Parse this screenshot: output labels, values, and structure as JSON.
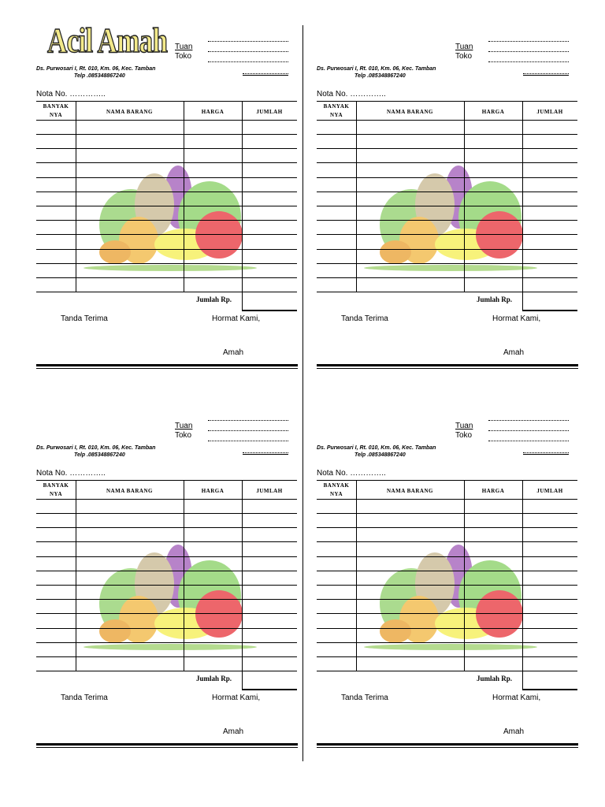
{
  "forms": [
    {
      "title": "Acil Amah",
      "tuan": "Tuan",
      "toko": "Toko",
      "address": "Ds. Purwosari I, Rt. 010, Km. 06, Kec. Tamban",
      "phone": "Telp .085348867240",
      "nota": "Nota No. …………..",
      "headers": [
        "BANYAK NYA",
        "NAMA BARANG",
        "HARGA",
        "JUMLAH"
      ],
      "total_label": "Jumlah Rp.",
      "receiver": "Tanda Terima",
      "regards": "Hormat Kami,",
      "signer": "Amah"
    },
    {
      "tuan": "Tuan",
      "toko": "Toko",
      "address": "Ds. Purwosari I, Rt. 010, Km. 06, Kec. Tamban",
      "phone": "Telp .085348867240",
      "nota": "Nota No. …………..",
      "headers": [
        "BANYAK NYA",
        "NAMA BARANG",
        "HARGA",
        "JUMLAH"
      ],
      "total_label": "Jumlah Rp.",
      "receiver": "Tanda Terima",
      "regards": "Hormat Kami,",
      "signer": "Amah"
    },
    {
      "tuan": "Tuan",
      "toko": "Toko",
      "address": "Ds. Purwosari I, Rt. 010, Km. 06, Kec. Tamban",
      "phone": "Telp .085348867240",
      "nota": "Nota No. …………..",
      "headers": [
        "BANYAK NYA",
        "NAMA BARANG",
        "HARGA",
        "JUMLAH"
      ],
      "total_label": "Jumlah Rp.",
      "receiver": "Tanda Terima",
      "regards": "Hormat Kami,",
      "signer": "Amah"
    },
    {
      "tuan": "Tuan",
      "toko": "Toko",
      "address": "Ds. Purwosari I, Rt. 010, Km. 06, Kec. Tamban",
      "phone": "Telp .085348867240",
      "nota": "Nota No. …………..",
      "headers": [
        "BANYAK NYA",
        "NAMA BARANG",
        "HARGA",
        "JUMLAH"
      ],
      "total_label": "Jumlah Rp.",
      "receiver": "Tanda Terima",
      "regards": "Hormat Kami,",
      "signer": "Amah"
    }
  ]
}
